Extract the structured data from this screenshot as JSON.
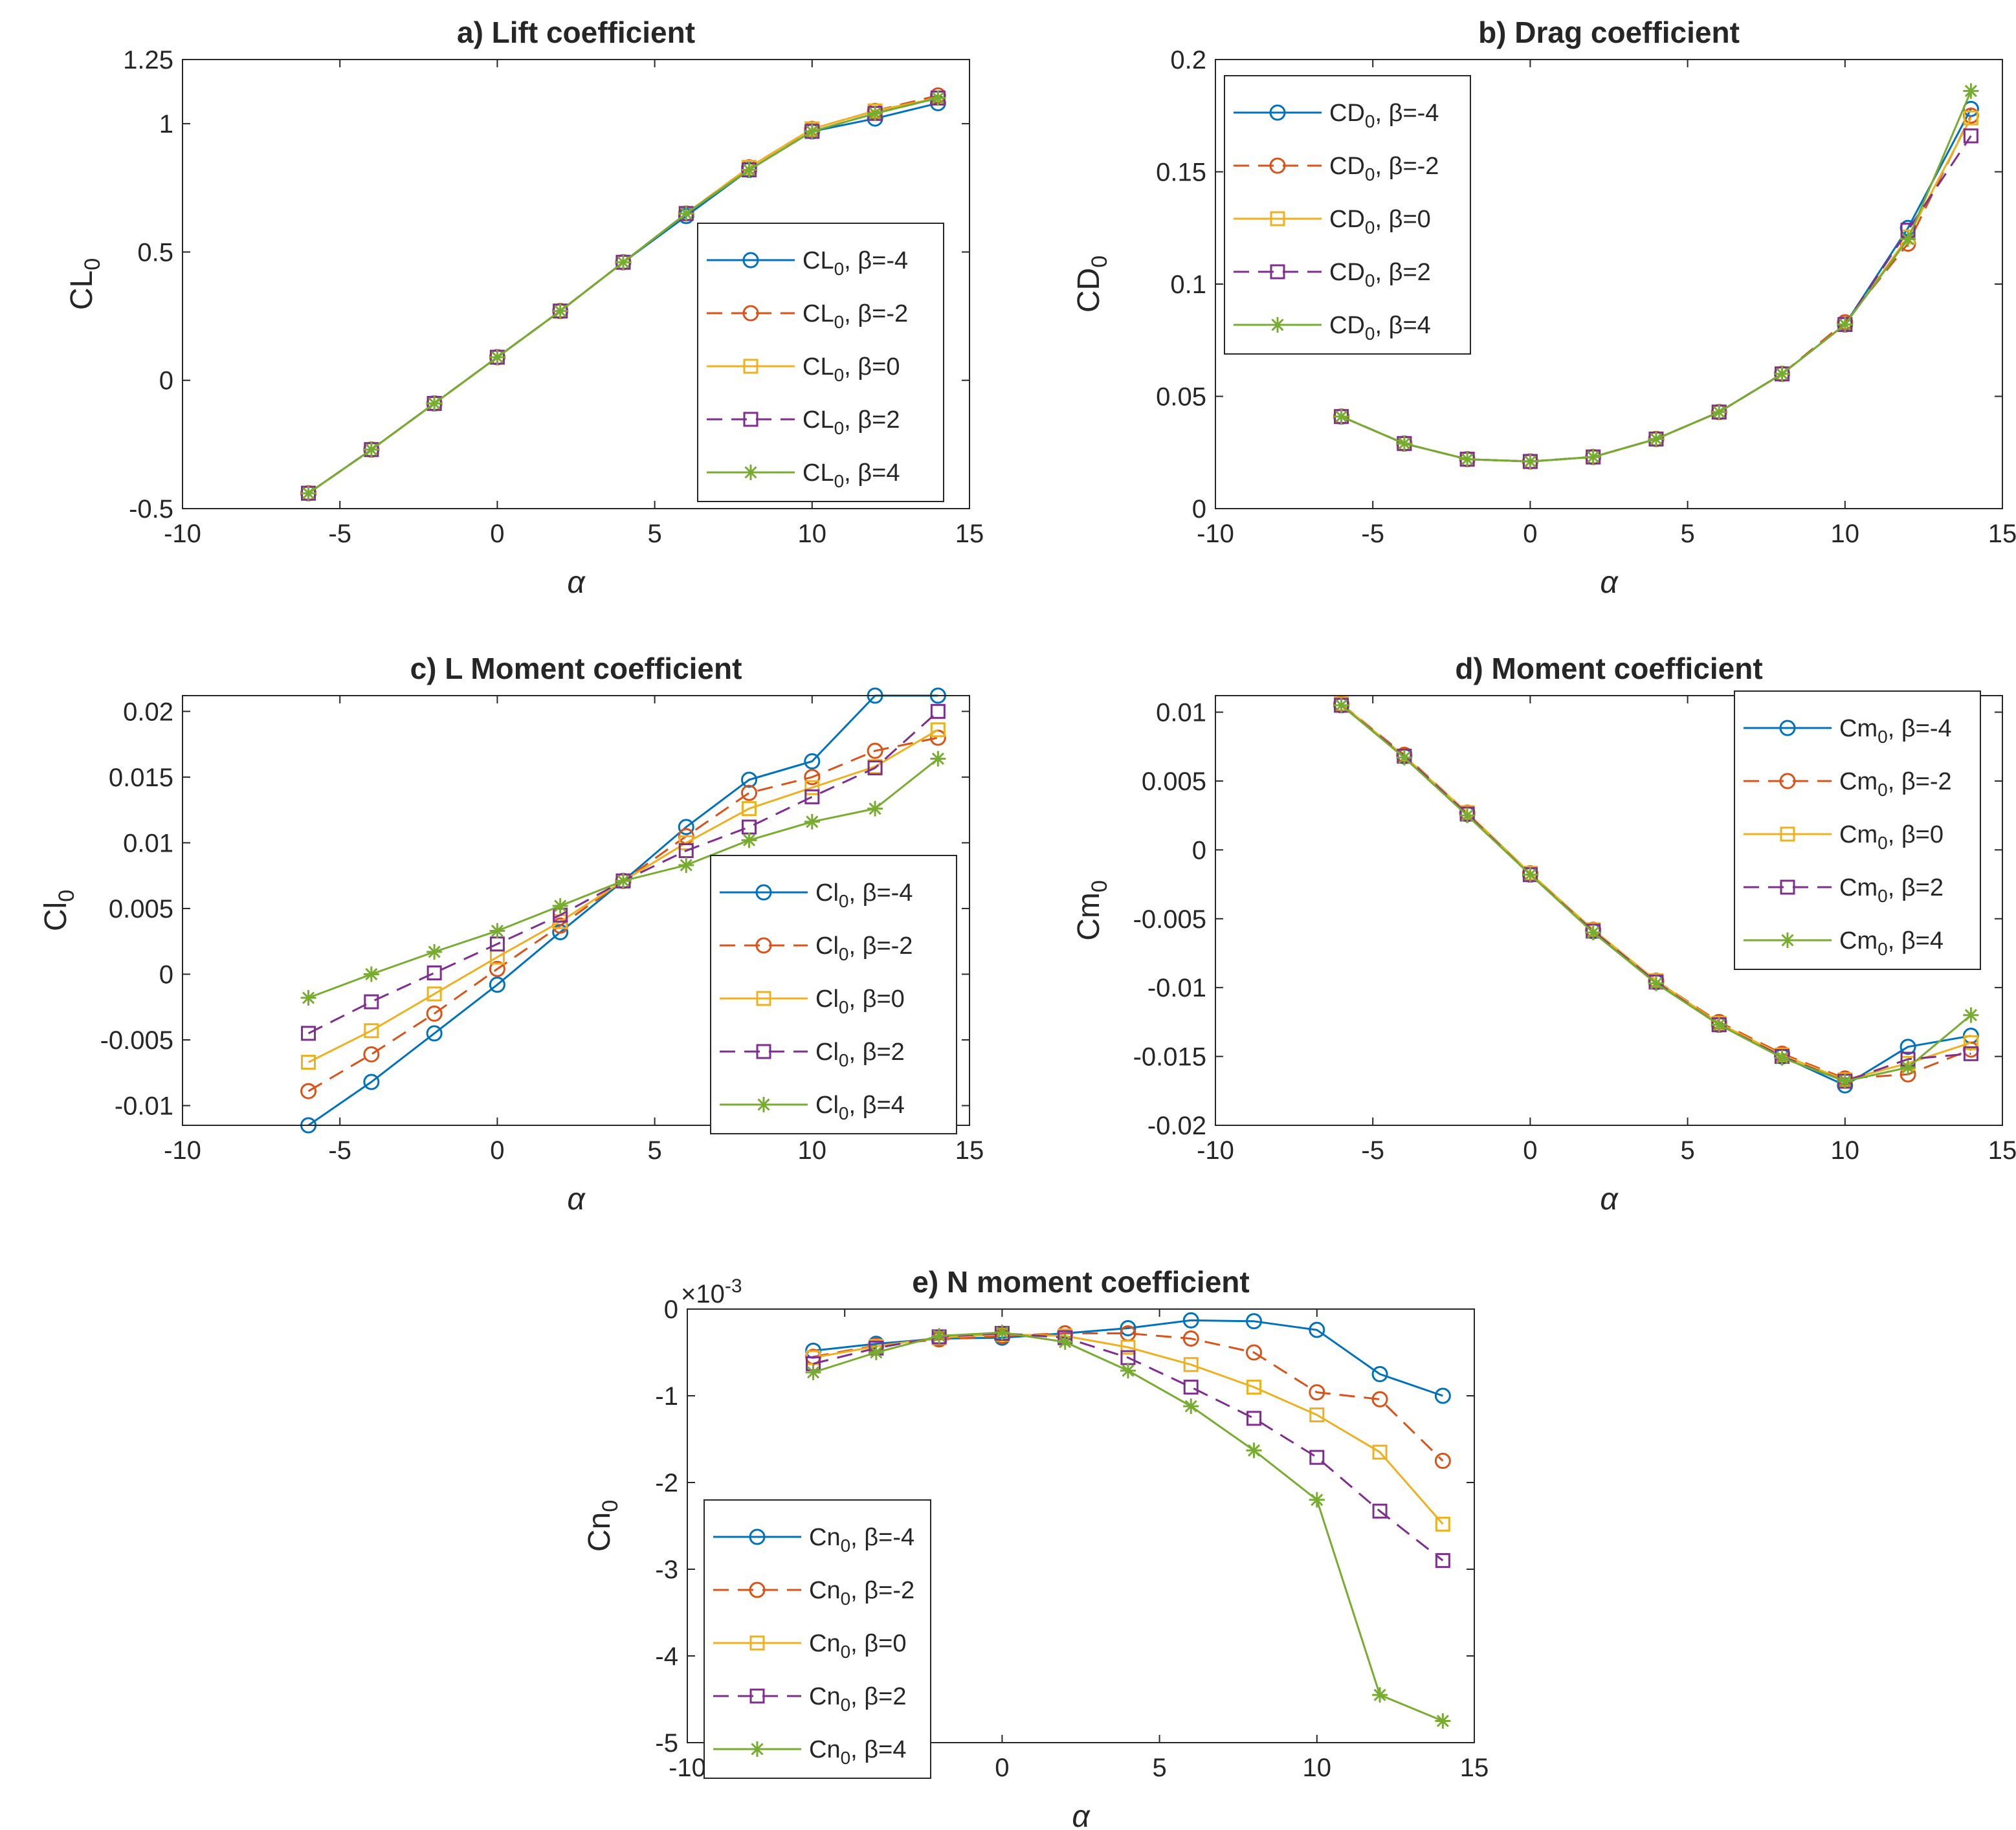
{
  "colors": {
    "beta_m4": "#0072BD",
    "beta_m2": "#D95319",
    "beta_0": "#EDB120",
    "beta_2": "#7E2F8E",
    "beta_4": "#77AC30",
    "axes": "#262626",
    "legend_border": "#262626"
  },
  "series_styles": [
    {
      "key": "beta_m4",
      "beta": "-4",
      "marker": "circle-icon",
      "dash": "solid"
    },
    {
      "key": "beta_m2",
      "beta": "-2",
      "marker": "circle-icon",
      "dash": "dashed"
    },
    {
      "key": "beta_0",
      "beta": "0",
      "marker": "square-icon",
      "dash": "solid"
    },
    {
      "key": "beta_2",
      "beta": "2",
      "marker": "square-icon",
      "dash": "dashed"
    },
    {
      "key": "beta_4",
      "beta": "4",
      "marker": "asterisk-icon",
      "dash": "solid"
    }
  ],
  "chart_data": [
    {
      "id": "a",
      "type": "line",
      "title": "a) Lift coefficient",
      "xlabel": "α",
      "ylabel_base": "CL",
      "ylabel_sub": "0",
      "legend_prefix": "CL",
      "legend_location": "east",
      "xlim": [
        -10,
        15
      ],
      "ylim": [
        -0.5,
        1.25
      ],
      "xticks": [
        -10,
        -5,
        0,
        5,
        10,
        15
      ],
      "yticks": [
        -0.5,
        0,
        0.5,
        1,
        1.25
      ],
      "ytick_labels": [
        "-0.5",
        "0",
        "0.5",
        "1",
        "1.25"
      ],
      "exponent_label": "",
      "x": [
        -6,
        -4,
        -2,
        0,
        2,
        4,
        6,
        8,
        10,
        12,
        14
      ],
      "series": [
        {
          "name": "β=-4",
          "values": [
            -0.44,
            -0.27,
            -0.09,
            0.09,
            0.27,
            0.46,
            0.64,
            0.82,
            0.97,
            1.02,
            1.08
          ]
        },
        {
          "name": "β=-2",
          "values": [
            -0.44,
            -0.27,
            -0.09,
            0.09,
            0.27,
            0.46,
            0.65,
            0.83,
            0.98,
            1.05,
            1.11
          ]
        },
        {
          "name": "β=0",
          "values": [
            -0.44,
            -0.27,
            -0.09,
            0.09,
            0.27,
            0.46,
            0.65,
            0.83,
            0.98,
            1.05,
            1.1
          ]
        },
        {
          "name": "β=2",
          "values": [
            -0.44,
            -0.27,
            -0.09,
            0.09,
            0.27,
            0.46,
            0.65,
            0.82,
            0.97,
            1.04,
            1.1
          ]
        },
        {
          "name": "β=4",
          "values": [
            -0.44,
            -0.27,
            -0.09,
            0.09,
            0.27,
            0.46,
            0.65,
            0.82,
            0.97,
            1.04,
            1.1
          ]
        }
      ]
    },
    {
      "id": "b",
      "type": "line",
      "title": "b) Drag coefficient",
      "xlabel": "α",
      "ylabel_base": "CD",
      "ylabel_sub": "0",
      "legend_prefix": "CD",
      "legend_location": "northwest",
      "xlim": [
        -10,
        15
      ],
      "ylim": [
        0,
        0.2
      ],
      "xticks": [
        -10,
        -5,
        0,
        5,
        10,
        15
      ],
      "yticks": [
        0,
        0.05,
        0.1,
        0.15,
        0.2
      ],
      "ytick_labels": [
        "0",
        "0.05",
        "0.1",
        "0.15",
        "0.2"
      ],
      "exponent_label": "",
      "x": [
        -6,
        -4,
        -2,
        0,
        2,
        4,
        6,
        8,
        10,
        12,
        14
      ],
      "series": [
        {
          "name": "β=-4",
          "values": [
            0.041,
            0.029,
            0.022,
            0.021,
            0.023,
            0.031,
            0.043,
            0.06,
            0.082,
            0.125,
            0.178
          ]
        },
        {
          "name": "β=-2",
          "values": [
            0.041,
            0.029,
            0.022,
            0.021,
            0.023,
            0.031,
            0.043,
            0.06,
            0.083,
            0.118,
            0.175
          ]
        },
        {
          "name": "β=0",
          "values": [
            0.041,
            0.029,
            0.022,
            0.021,
            0.023,
            0.031,
            0.043,
            0.06,
            0.082,
            0.121,
            0.174
          ]
        },
        {
          "name": "β=2",
          "values": [
            0.041,
            0.029,
            0.022,
            0.021,
            0.023,
            0.031,
            0.043,
            0.06,
            0.082,
            0.124,
            0.166
          ]
        },
        {
          "name": "β=4",
          "values": [
            0.041,
            0.029,
            0.022,
            0.021,
            0.023,
            0.031,
            0.043,
            0.06,
            0.082,
            0.12,
            0.186
          ]
        }
      ]
    },
    {
      "id": "c",
      "type": "line",
      "title": "c) L Moment coefficient",
      "xlabel": "α",
      "ylabel_base": "Cl",
      "ylabel_sub": "0",
      "legend_prefix": "Cl",
      "legend_location": "southeast",
      "xlim": [
        -10,
        15
      ],
      "ylim": [
        -0.0115,
        0.0212
      ],
      "xticks": [
        -10,
        -5,
        0,
        5,
        10,
        15
      ],
      "yticks": [
        -0.01,
        -0.005,
        0,
        0.005,
        0.01,
        0.015,
        0.02
      ],
      "ytick_labels": [
        "-0.01",
        "-0.005",
        "0",
        "0.005",
        "0.01",
        "0.015",
        "0.02"
      ],
      "exponent_label": "",
      "x": [
        -6,
        -4,
        -2,
        0,
        2,
        4,
        6,
        8,
        10,
        12,
        14
      ],
      "series": [
        {
          "name": "β=-4",
          "values": [
            -0.0115,
            -0.0082,
            -0.0045,
            -0.0008,
            0.0032,
            0.0071,
            0.0112,
            0.0148,
            0.0162,
            0.0212,
            0.0212
          ]
        },
        {
          "name": "β=-2",
          "values": [
            -0.0089,
            -0.0061,
            -0.003,
            0.0004,
            0.0037,
            0.0071,
            0.0105,
            0.0138,
            0.015,
            0.017,
            0.018
          ]
        },
        {
          "name": "β=0",
          "values": [
            -0.0067,
            -0.0043,
            -0.0015,
            0.0013,
            0.004,
            0.0071,
            0.01,
            0.0126,
            0.0142,
            0.0158,
            0.0186
          ]
        },
        {
          "name": "β=2",
          "values": [
            -0.0045,
            -0.0021,
            0.0001,
            0.0023,
            0.0045,
            0.0071,
            0.0094,
            0.0112,
            0.0135,
            0.0157,
            0.02
          ]
        },
        {
          "name": "β=4",
          "values": [
            -0.0018,
            0.0,
            0.0017,
            0.0033,
            0.0052,
            0.0071,
            0.0083,
            0.0102,
            0.0116,
            0.0126,
            0.0164
          ]
        }
      ]
    },
    {
      "id": "d",
      "type": "line",
      "title": "d) Moment coefficient",
      "xlabel": "α",
      "ylabel_base": "Cm",
      "ylabel_sub": "0",
      "legend_prefix": "Cm",
      "legend_location": "northeast",
      "xlim": [
        -10,
        15
      ],
      "ylim": [
        -0.02,
        0.0112
      ],
      "xticks": [
        -10,
        -5,
        0,
        5,
        10,
        15
      ],
      "yticks": [
        -0.02,
        -0.015,
        -0.01,
        -0.005,
        0,
        0.005,
        0.01
      ],
      "ytick_labels": [
        "-0.02",
        "-0.015",
        "-0.01",
        "-0.005",
        "0",
        "0.005",
        "0.01"
      ],
      "exponent_label": "",
      "x": [
        -6,
        -4,
        -2,
        0,
        2,
        4,
        6,
        8,
        10,
        12,
        14
      ],
      "series": [
        {
          "name": "β=-4",
          "values": [
            0.0105,
            0.0068,
            0.0026,
            -0.0018,
            -0.0059,
            -0.0096,
            -0.0127,
            -0.015,
            -0.0171,
            -0.0143,
            -0.0135
          ]
        },
        {
          "name": "β=-2",
          "values": [
            0.0106,
            0.0069,
            0.0027,
            -0.0017,
            -0.0058,
            -0.0095,
            -0.0125,
            -0.0148,
            -0.0166,
            -0.0163,
            -0.0145
          ]
        },
        {
          "name": "β=0",
          "values": [
            0.0106,
            0.0068,
            0.0027,
            -0.0017,
            -0.0058,
            -0.0095,
            -0.0126,
            -0.0149,
            -0.0167,
            -0.0155,
            -0.014
          ]
        },
        {
          "name": "β=2",
          "values": [
            0.0105,
            0.0068,
            0.0026,
            -0.0018,
            -0.0059,
            -0.0096,
            -0.0127,
            -0.015,
            -0.0168,
            -0.0152,
            -0.0148
          ]
        },
        {
          "name": "β=4",
          "values": [
            0.0105,
            0.0067,
            0.0025,
            -0.0018,
            -0.006,
            -0.0097,
            -0.0127,
            -0.0151,
            -0.0168,
            -0.0158,
            -0.012
          ]
        }
      ]
    },
    {
      "id": "e",
      "type": "line",
      "title": "e) N moment coefficient",
      "xlabel": "α",
      "ylabel_base": "Cn",
      "ylabel_sub": "0",
      "legend_prefix": "Cn",
      "legend_location": "southwest",
      "xlim": [
        -10,
        15
      ],
      "ylim": [
        -5,
        0
      ],
      "xticks": [
        -10,
        -5,
        0,
        5,
        10,
        15
      ],
      "yticks": [
        -5,
        -4,
        -3,
        -2,
        -1,
        0
      ],
      "ytick_labels": [
        "-5",
        "-4",
        "-3",
        "-2",
        "-1",
        "0"
      ],
      "exponent_label": "×10",
      "exponent_power": "-3",
      "x": [
        -6,
        -4,
        -2,
        0,
        2,
        4,
        6,
        8,
        10,
        12,
        14
      ],
      "series": [
        {
          "name": "β=-4",
          "values": [
            -0.48,
            -0.4,
            -0.34,
            -0.33,
            -0.28,
            -0.22,
            -0.13,
            -0.14,
            -0.24,
            -0.75,
            -1.0
          ]
        },
        {
          "name": "β=-2",
          "values": [
            -0.55,
            -0.42,
            -0.35,
            -0.31,
            -0.28,
            -0.28,
            -0.34,
            -0.5,
            -0.96,
            -1.04,
            -1.75
          ]
        },
        {
          "name": "β=0",
          "values": [
            -0.56,
            -0.43,
            -0.33,
            -0.29,
            -0.31,
            -0.44,
            -0.64,
            -0.9,
            -1.22,
            -1.65,
            -2.48
          ]
        },
        {
          "name": "β=2",
          "values": [
            -0.63,
            -0.45,
            -0.32,
            -0.28,
            -0.33,
            -0.56,
            -0.9,
            -1.26,
            -1.71,
            -2.33,
            -2.9
          ]
        },
        {
          "name": "β=4",
          "values": [
            -0.73,
            -0.5,
            -0.31,
            -0.27,
            -0.38,
            -0.71,
            -1.12,
            -1.63,
            -2.2,
            -4.45,
            -4.75
          ]
        }
      ]
    }
  ]
}
